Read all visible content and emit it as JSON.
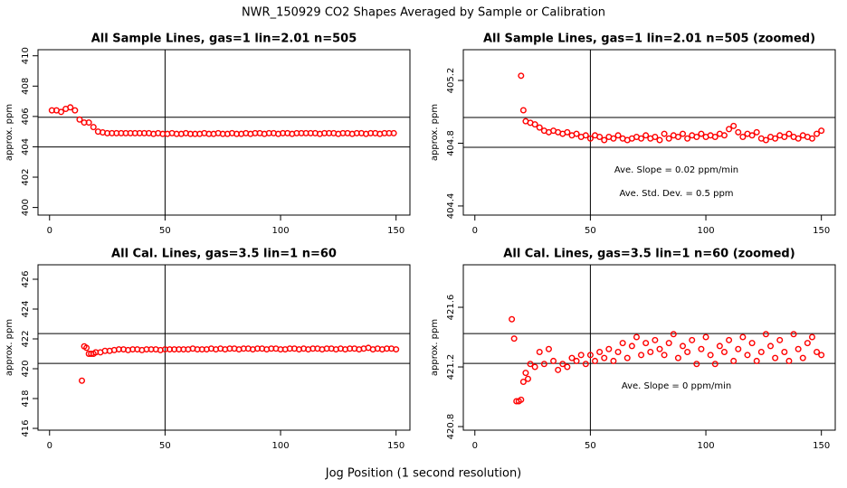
{
  "title": "NWR_150929  CO2 Shapes Averaged by Sample or Calibration",
  "xlabel": "Jog Position (1 second resolution)",
  "chart_data": [
    {
      "type": "scatter",
      "title": "All Sample Lines, gas=1 lin=2.01 n=505",
      "ylabel": "approx. ppm",
      "color": "#ff0000",
      "xlim": [
        -5,
        156
      ],
      "ylim": [
        399.5,
        410.4
      ],
      "xticks": [
        0,
        50,
        100,
        150
      ],
      "yticks": [
        400,
        402,
        404,
        406,
        408,
        410
      ],
      "vline": 50,
      "hlines": [
        405.95,
        403.99
      ],
      "x": [
        1,
        3,
        5,
        7,
        9,
        11,
        13,
        15,
        17,
        19,
        21,
        23,
        25,
        27,
        29,
        31,
        33,
        35,
        37,
        39,
        41,
        43,
        45,
        47,
        49,
        51,
        53,
        55,
        57,
        59,
        61,
        63,
        65,
        67,
        69,
        71,
        73,
        75,
        77,
        79,
        81,
        83,
        85,
        87,
        89,
        91,
        93,
        95,
        97,
        99,
        101,
        103,
        105,
        107,
        109,
        111,
        113,
        115,
        117,
        119,
        121,
        123,
        125,
        127,
        129,
        131,
        133,
        135,
        137,
        139,
        141,
        143,
        145,
        147,
        149
      ],
      "values": [
        406.4,
        406.4,
        406.3,
        406.5,
        406.6,
        406.4,
        405.8,
        405.6,
        405.6,
        405.3,
        405.0,
        404.95,
        404.9,
        404.9,
        404.9,
        404.9,
        404.9,
        404.9,
        404.9,
        404.9,
        404.9,
        404.9,
        404.85,
        404.9,
        404.85,
        404.85,
        404.9,
        404.85,
        404.85,
        404.9,
        404.85,
        404.85,
        404.85,
        404.9,
        404.85,
        404.85,
        404.9,
        404.85,
        404.85,
        404.9,
        404.85,
        404.85,
        404.9,
        404.85,
        404.9,
        404.9,
        404.85,
        404.9,
        404.9,
        404.85,
        404.9,
        404.9,
        404.85,
        404.9,
        404.9,
        404.9,
        404.9,
        404.9,
        404.85,
        404.9,
        404.9,
        404.9,
        404.85,
        404.9,
        404.9,
        404.85,
        404.9,
        404.9,
        404.85,
        404.9,
        404.9,
        404.85,
        404.9,
        404.9,
        404.9
      ]
    },
    {
      "type": "scatter",
      "title": "All Sample Lines, gas=1 lin=2.01 n=505 (zoomed)",
      "ylabel": "approx. ppm",
      "color": "#ff0000",
      "xlim": [
        -5,
        156
      ],
      "ylim": [
        404.342,
        405.396
      ],
      "xticks": [
        0,
        50,
        100,
        150
      ],
      "yticks": [
        404.4,
        404.8,
        405.2
      ],
      "vline": 50,
      "hlines": [
        404.964,
        404.774
      ],
      "annotations": [
        "Ave. Slope =  0.02  ppm/min",
        "Ave. Std. Dev. =  0.5  ppm"
      ],
      "x": [
        20,
        21,
        22,
        24,
        26,
        28,
        30,
        32,
        34,
        36,
        38,
        40,
        42,
        44,
        46,
        48,
        50,
        52,
        54,
        56,
        58,
        60,
        62,
        64,
        66,
        68,
        70,
        72,
        74,
        76,
        78,
        80,
        82,
        84,
        86,
        88,
        90,
        92,
        94,
        96,
        98,
        100,
        102,
        104,
        106,
        108,
        110,
        112,
        114,
        116,
        118,
        120,
        122,
        124,
        126,
        128,
        130,
        132,
        134,
        136,
        138,
        140,
        142,
        144,
        146,
        148,
        150
      ],
      "values": [
        405.23,
        405.01,
        404.94,
        404.93,
        404.92,
        404.9,
        404.88,
        404.87,
        404.88,
        404.87,
        404.86,
        404.87,
        404.85,
        404.86,
        404.84,
        404.85,
        404.83,
        404.85,
        404.84,
        404.82,
        404.84,
        404.83,
        404.85,
        404.83,
        404.82,
        404.83,
        404.84,
        404.83,
        404.85,
        404.83,
        404.84,
        404.82,
        404.86,
        404.83,
        404.85,
        404.84,
        404.86,
        404.83,
        404.85,
        404.84,
        404.86,
        404.84,
        404.85,
        404.84,
        404.86,
        404.85,
        404.89,
        404.91,
        404.87,
        404.84,
        404.86,
        404.85,
        404.87,
        404.83,
        404.82,
        404.84,
        404.83,
        404.85,
        404.84,
        404.86,
        404.84,
        404.83,
        404.85,
        404.84,
        404.83,
        404.86,
        404.88
      ]
    },
    {
      "type": "scatter",
      "title": "All Cal. Lines, gas=3.5 lin=1 n=60",
      "ylabel": "approx. ppm",
      "color": "#ff0000",
      "xlim": [
        -5,
        156
      ],
      "ylim": [
        415.88,
        426.97
      ],
      "xticks": [
        0,
        50,
        100,
        150
      ],
      "yticks": [
        416,
        418,
        420,
        422,
        424,
        426
      ],
      "vline": 50,
      "hlines": [
        422.36,
        420.36
      ],
      "x": [
        14,
        15,
        16,
        17,
        18,
        19,
        20,
        22,
        24,
        26,
        28,
        30,
        32,
        34,
        36,
        38,
        40,
        42,
        44,
        46,
        48,
        50,
        52,
        54,
        56,
        58,
        60,
        62,
        64,
        66,
        68,
        70,
        72,
        74,
        76,
        78,
        80,
        82,
        84,
        86,
        88,
        90,
        92,
        94,
        96,
        98,
        100,
        102,
        104,
        106,
        108,
        110,
        112,
        114,
        116,
        118,
        120,
        122,
        124,
        126,
        128,
        130,
        132,
        134,
        136,
        138,
        140,
        142,
        144,
        146,
        148,
        150
      ],
      "values": [
        419.2,
        421.5,
        421.4,
        421.0,
        421.0,
        421.0,
        421.1,
        421.1,
        421.2,
        421.2,
        421.25,
        421.3,
        421.3,
        421.25,
        421.3,
        421.3,
        421.25,
        421.3,
        421.3,
        421.3,
        421.25,
        421.3,
        421.3,
        421.3,
        421.3,
        421.3,
        421.3,
        421.35,
        421.3,
        421.3,
        421.3,
        421.35,
        421.3,
        421.35,
        421.3,
        421.35,
        421.35,
        421.3,
        421.35,
        421.35,
        421.3,
        421.35,
        421.35,
        421.3,
        421.35,
        421.35,
        421.3,
        421.3,
        421.35,
        421.35,
        421.3,
        421.35,
        421.3,
        421.35,
        421.35,
        421.3,
        421.35,
        421.35,
        421.3,
        421.35,
        421.3,
        421.35,
        421.35,
        421.3,
        421.35,
        421.4,
        421.3,
        421.35,
        421.3,
        421.35,
        421.35,
        421.3
      ]
    },
    {
      "type": "scatter",
      "title": "All Cal. Lines, gas=3.5 lin=1 n=60 (zoomed)",
      "ylabel": "approx. ppm",
      "color": "#ff0000",
      "xlim": [
        -5,
        156
      ],
      "ylim": [
        420.776,
        421.885
      ],
      "xticks": [
        0,
        50,
        100,
        150
      ],
      "yticks": [
        420.8,
        421.2,
        421.6
      ],
      "vline": 50,
      "hlines": [
        421.424,
        421.224
      ],
      "annotations": [
        "Ave. Slope =  0  ppm/min"
      ],
      "x": [
        16,
        17,
        18,
        19,
        20,
        21,
        22,
        23,
        24,
        26,
        28,
        30,
        32,
        34,
        36,
        38,
        40,
        42,
        44,
        46,
        48,
        50,
        52,
        54,
        56,
        58,
        60,
        62,
        64,
        66,
        68,
        70,
        72,
        74,
        76,
        78,
        80,
        82,
        84,
        86,
        88,
        90,
        92,
        94,
        96,
        98,
        100,
        102,
        104,
        106,
        108,
        110,
        112,
        114,
        116,
        118,
        120,
        122,
        124,
        126,
        128,
        130,
        132,
        134,
        136,
        138,
        140,
        142,
        144,
        146,
        148,
        150
      ],
      "values": [
        421.52,
        421.39,
        420.97,
        420.97,
        420.98,
        421.1,
        421.16,
        421.12,
        421.22,
        421.2,
        421.3,
        421.22,
        421.32,
        421.24,
        421.18,
        421.22,
        421.2,
        421.26,
        421.24,
        421.28,
        421.22,
        421.28,
        421.24,
        421.3,
        421.26,
        421.32,
        421.24,
        421.3,
        421.36,
        421.26,
        421.34,
        421.4,
        421.28,
        421.36,
        421.3,
        421.38,
        421.32,
        421.28,
        421.36,
        421.42,
        421.26,
        421.34,
        421.3,
        421.38,
        421.22,
        421.32,
        421.4,
        421.28,
        421.22,
        421.34,
        421.3,
        421.38,
        421.24,
        421.32,
        421.4,
        421.28,
        421.36,
        421.24,
        421.3,
        421.42,
        421.34,
        421.26,
        421.38,
        421.3,
        421.24,
        421.42,
        421.32,
        421.26,
        421.36,
        421.4,
        421.3,
        421.28
      ]
    }
  ]
}
